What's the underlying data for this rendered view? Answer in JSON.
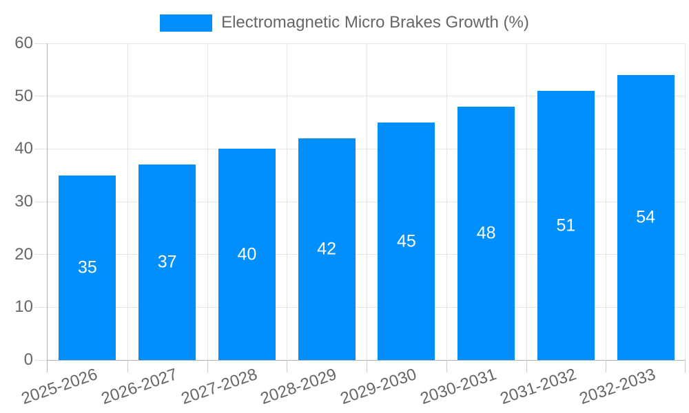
{
  "chart_data": {
    "type": "bar",
    "title": "Electromagnetic Micro Brakes Growth (%)",
    "categories": [
      "2025-2026",
      "2026-2027",
      "2027-2028",
      "2028-2029",
      "2029-2030",
      "2030-2031",
      "2031-2032",
      "2032-2033"
    ],
    "values": [
      35,
      37,
      40,
      42,
      45,
      48,
      51,
      54
    ],
    "xlabel": "",
    "ylabel": "",
    "ylim": [
      0,
      60
    ],
    "yticks": [
      0,
      10,
      20,
      30,
      40,
      50,
      60
    ],
    "grid": true,
    "legend_position": "top-center",
    "x_label_rotation_deg": -19,
    "colors": {
      "bar": "#008ffb",
      "grid": "#e5e5e5",
      "axis_line": "#b1b1b1",
      "y_tick": "#e0e0e0",
      "x_tick": "#c9c9c9",
      "label_text": "#666666",
      "value_label_text": "#ffffff",
      "background": "#ffffff"
    }
  }
}
